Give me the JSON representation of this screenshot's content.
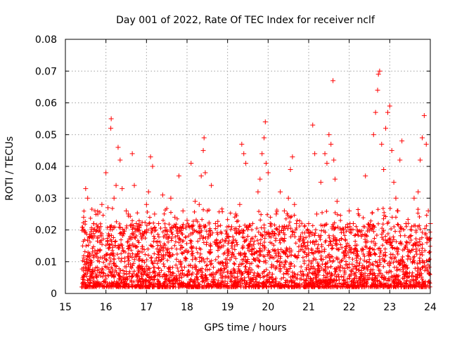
{
  "chart_data": {
    "type": "scatter",
    "title": "Day 001 of 2022, Rate Of TEC Index for receiver nclf",
    "xlabel": "GPS time / hours",
    "ylabel": "ROTI / TECUs",
    "xlim": [
      15,
      24
    ],
    "ylim": [
      0,
      0.08
    ],
    "x_ticks": [
      "15",
      "16",
      "17",
      "18",
      "19",
      "20",
      "21",
      "22",
      "23",
      "24"
    ],
    "y_ticks": [
      "0",
      "0.01",
      "0.02",
      "0.03",
      "0.04",
      "0.05",
      "0.06",
      "0.07",
      "0.08"
    ],
    "grid": true,
    "marker": "+",
    "series_color": "#ff0000",
    "series": [
      {
        "name": "ROTI",
        "points": [
          [
            15.45,
            0.024
          ],
          [
            15.5,
            0.033
          ],
          [
            15.55,
            0.03
          ],
          [
            15.6,
            0.018
          ],
          [
            15.7,
            0.022
          ],
          [
            15.8,
            0.025
          ],
          [
            15.9,
            0.028
          ],
          [
            16.0,
            0.038
          ],
          [
            16.05,
            0.027
          ],
          [
            16.1,
            0.021
          ],
          [
            16.12,
            0.052
          ],
          [
            16.13,
            0.055
          ],
          [
            16.2,
            0.03
          ],
          [
            16.25,
            0.034
          ],
          [
            16.3,
            0.046
          ],
          [
            16.35,
            0.042
          ],
          [
            16.4,
            0.033
          ],
          [
            16.5,
            0.026
          ],
          [
            16.55,
            0.025
          ],
          [
            16.65,
            0.044
          ],
          [
            16.7,
            0.034
          ],
          [
            16.75,
            0.022
          ],
          [
            16.8,
            0.02
          ],
          [
            16.9,
            0.019
          ],
          [
            17.0,
            0.028
          ],
          [
            17.05,
            0.032
          ],
          [
            17.1,
            0.043
          ],
          [
            17.15,
            0.04
          ],
          [
            17.2,
            0.025
          ],
          [
            17.3,
            0.022
          ],
          [
            17.4,
            0.031
          ],
          [
            17.5,
            0.02
          ],
          [
            17.6,
            0.03
          ],
          [
            17.7,
            0.024
          ],
          [
            17.8,
            0.037
          ],
          [
            17.9,
            0.026
          ],
          [
            18.0,
            0.023
          ],
          [
            18.1,
            0.041
          ],
          [
            18.2,
            0.029
          ],
          [
            18.3,
            0.028
          ],
          [
            18.35,
            0.037
          ],
          [
            18.4,
            0.045
          ],
          [
            18.42,
            0.049
          ],
          [
            18.45,
            0.038
          ],
          [
            18.5,
            0.026
          ],
          [
            18.6,
            0.034
          ],
          [
            18.7,
            0.022
          ],
          [
            18.8,
            0.016
          ],
          [
            18.9,
            0.015
          ],
          [
            19.0,
            0.018
          ],
          [
            19.1,
            0.021
          ],
          [
            19.2,
            0.025
          ],
          [
            19.3,
            0.028
          ],
          [
            19.35,
            0.047
          ],
          [
            19.4,
            0.044
          ],
          [
            19.45,
            0.041
          ],
          [
            19.5,
            0.018
          ],
          [
            19.6,
            0.015
          ],
          [
            19.75,
            0.032
          ],
          [
            19.8,
            0.036
          ],
          [
            19.85,
            0.044
          ],
          [
            19.9,
            0.049
          ],
          [
            19.93,
            0.054
          ],
          [
            19.95,
            0.041
          ],
          [
            20.0,
            0.038
          ],
          [
            20.05,
            0.022
          ],
          [
            20.1,
            0.019
          ],
          [
            20.2,
            0.025
          ],
          [
            20.3,
            0.032
          ],
          [
            20.4,
            0.026
          ],
          [
            20.5,
            0.03
          ],
          [
            20.55,
            0.039
          ],
          [
            20.6,
            0.043
          ],
          [
            20.65,
            0.028
          ],
          [
            20.7,
            0.022
          ],
          [
            20.8,
            0.018
          ],
          [
            20.9,
            0.016
          ],
          [
            21.0,
            0.022
          ],
          [
            21.1,
            0.053
          ],
          [
            21.15,
            0.044
          ],
          [
            21.2,
            0.025
          ],
          [
            21.3,
            0.035
          ],
          [
            21.4,
            0.044
          ],
          [
            21.45,
            0.041
          ],
          [
            21.5,
            0.05
          ],
          [
            21.55,
            0.047
          ],
          [
            21.6,
            0.067
          ],
          [
            21.62,
            0.042
          ],
          [
            21.65,
            0.036
          ],
          [
            21.7,
            0.029
          ],
          [
            21.8,
            0.02
          ],
          [
            21.9,
            0.017
          ],
          [
            22.0,
            0.026
          ],
          [
            22.1,
            0.022
          ],
          [
            22.2,
            0.02
          ],
          [
            22.3,
            0.018
          ],
          [
            22.4,
            0.037
          ],
          [
            22.5,
            0.014
          ],
          [
            22.6,
            0.05
          ],
          [
            22.65,
            0.057
          ],
          [
            22.7,
            0.064
          ],
          [
            22.72,
            0.069
          ],
          [
            22.75,
            0.07
          ],
          [
            22.8,
            0.047
          ],
          [
            22.85,
            0.039
          ],
          [
            22.9,
            0.052
          ],
          [
            22.95,
            0.057
          ],
          [
            23.0,
            0.059
          ],
          [
            23.05,
            0.045
          ],
          [
            23.1,
            0.035
          ],
          [
            23.15,
            0.03
          ],
          [
            23.2,
            0.026
          ],
          [
            23.25,
            0.042
          ],
          [
            23.3,
            0.048
          ],
          [
            23.4,
            0.022
          ],
          [
            23.5,
            0.018
          ],
          [
            23.6,
            0.03
          ],
          [
            23.7,
            0.032
          ],
          [
            23.75,
            0.042
          ],
          [
            23.8,
            0.049
          ],
          [
            23.85,
            0.056
          ],
          [
            23.9,
            0.047
          ],
          [
            23.95,
            0.026
          ],
          [
            24.0,
            0.022
          ]
        ]
      }
    ]
  }
}
